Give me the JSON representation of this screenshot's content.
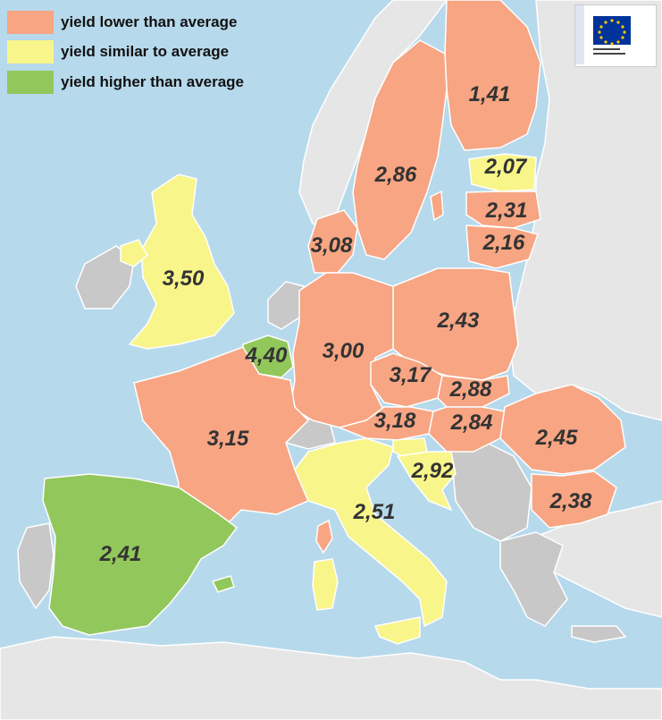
{
  "colors": {
    "sea": "#b7d9ec",
    "non_eu": "#e6e6e6",
    "missing": "#c8c8c8",
    "lower": "#f7a583",
    "similar": "#f8f58a",
    "higher": "#92c75b",
    "border": "#ffffff",
    "label": "#333333",
    "eu_blue": "#003399",
    "eu_star": "#ffcc00"
  },
  "legend": [
    {
      "label": "yield lower than average",
      "color": "#f7a583"
    },
    {
      "label": "yield similar to average",
      "color": "#f8f58a"
    },
    {
      "label": "yield higher than average",
      "color": "#92c75b"
    }
  ],
  "logo": {
    "icon": "eu-flag-icon",
    "text": "European Commission"
  },
  "regions": [
    {
      "value": "1,41",
      "category": "lower"
    },
    {
      "value": "2,86",
      "category": "lower"
    },
    {
      "value": "2,07",
      "category": "similar"
    },
    {
      "value": "2,31",
      "category": "lower"
    },
    {
      "value": "2,16",
      "category": "lower"
    },
    {
      "value": "3,08",
      "category": "lower"
    },
    {
      "value": "3,50",
      "category": "similar"
    },
    {
      "value": "2,43",
      "category": "lower"
    },
    {
      "value": "4,40",
      "category": "higher"
    },
    {
      "value": "3,00",
      "category": "lower"
    },
    {
      "value": "3,17",
      "category": "lower"
    },
    {
      "value": "2,88",
      "category": "lower"
    },
    {
      "value": "3,18",
      "category": "lower"
    },
    {
      "value": "2,84",
      "category": "lower"
    },
    {
      "value": "2,45",
      "category": "lower"
    },
    {
      "value": "3,15",
      "category": "lower"
    },
    {
      "value": "2,92",
      "category": "similar"
    },
    {
      "value": "2,51",
      "category": "similar"
    },
    {
      "value": "2,38",
      "category": "lower"
    },
    {
      "value": "2,41",
      "category": "higher"
    }
  ]
}
